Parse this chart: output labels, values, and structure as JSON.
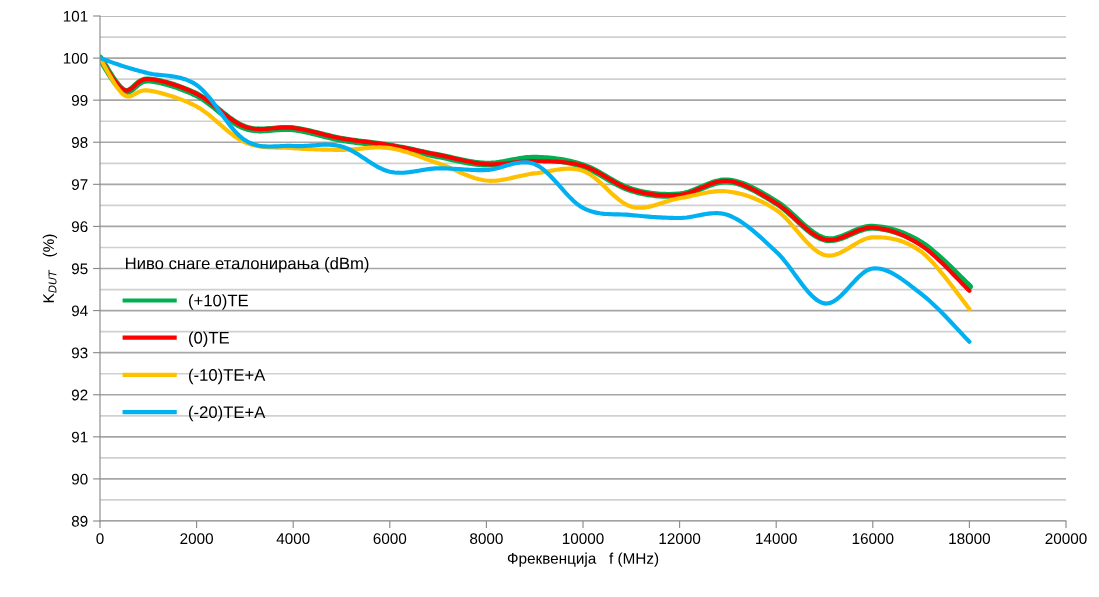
{
  "chart_data": {
    "type": "line",
    "xlabel": "Фреквенција   f (MHz)",
    "ylabel": "K$_{DUT}$   (%)",
    "legend_title": "Ниво снаге еталонирања (dBm)",
    "legend": "left",
    "grid": "y",
    "marker": "none",
    "line_style": "solid",
    "x": [
      0,
      500,
      1000,
      2000,
      3000,
      4000,
      5000,
      6000,
      7000,
      8000,
      9000,
      10000,
      11000,
      12000,
      13000,
      14000,
      15000,
      16000,
      17000,
      18000
    ],
    "series": [
      {
        "name": "(+10)TE",
        "color": "#00b050",
        "values": [
          100,
          99.22,
          99.48,
          99.13,
          98.35,
          98.32,
          98.07,
          97.91,
          97.68,
          97.48,
          97.62,
          97.44,
          96.87,
          96.75,
          97.08,
          96.57,
          95.7,
          95.98,
          95.6,
          94.57
        ]
      },
      {
        "name": "(0)TE",
        "color": "#ff0000",
        "values": [
          100,
          99.24,
          99.5,
          99.15,
          98.37,
          98.34,
          98.09,
          97.93,
          97.7,
          97.48,
          97.55,
          97.44,
          96.87,
          96.75,
          97.08,
          96.55,
          95.69,
          95.97,
          95.55,
          94.47
        ]
      },
      {
        "name": "(-10)TE+A",
        "color": "#ffc000",
        "values": [
          100,
          99.12,
          99.23,
          98.85,
          98.0,
          97.86,
          97.82,
          97.86,
          97.5,
          97.09,
          97.26,
          97.32,
          96.47,
          96.67,
          96.83,
          96.39,
          95.32,
          95.74,
          95.4,
          94.04
        ]
      },
      {
        "name": "(-20)TE+A",
        "color": "#00b0f0",
        "values": [
          100,
          99.8,
          99.64,
          99.36,
          98.05,
          97.91,
          97.9,
          97.3,
          97.38,
          97.34,
          97.48,
          96.44,
          96.27,
          96.2,
          96.27,
          95.4,
          94.17,
          95.0,
          94.4,
          93.26
        ]
      }
    ],
    "xlim": [
      0,
      20000
    ],
    "xticks": [
      0,
      2000,
      4000,
      6000,
      8000,
      10000,
      12000,
      14000,
      16000,
      18000,
      20000
    ],
    "ylim": [
      89,
      101
    ],
    "yticks": [
      89,
      {
        "value": 89.5,
        "label": null
      },
      90,
      {
        "value": 90.5,
        "label": null
      },
      91,
      {
        "value": 91.5,
        "label": null
      },
      92,
      {
        "value": 92.5,
        "label": null
      },
      93,
      {
        "value": 93.5,
        "label": null
      },
      94,
      {
        "value": 94.5,
        "label": null
      },
      95,
      {
        "value": 95.5,
        "label": null
      },
      96,
      {
        "value": 96.5,
        "label": null
      },
      97,
      {
        "value": 97.5,
        "label": null
      },
      98,
      {
        "value": 98.5,
        "label": null
      },
      99,
      {
        "value": 99.5,
        "label": null
      },
      100,
      {
        "value": 100.5,
        "label": null
      },
      101
    ]
  }
}
